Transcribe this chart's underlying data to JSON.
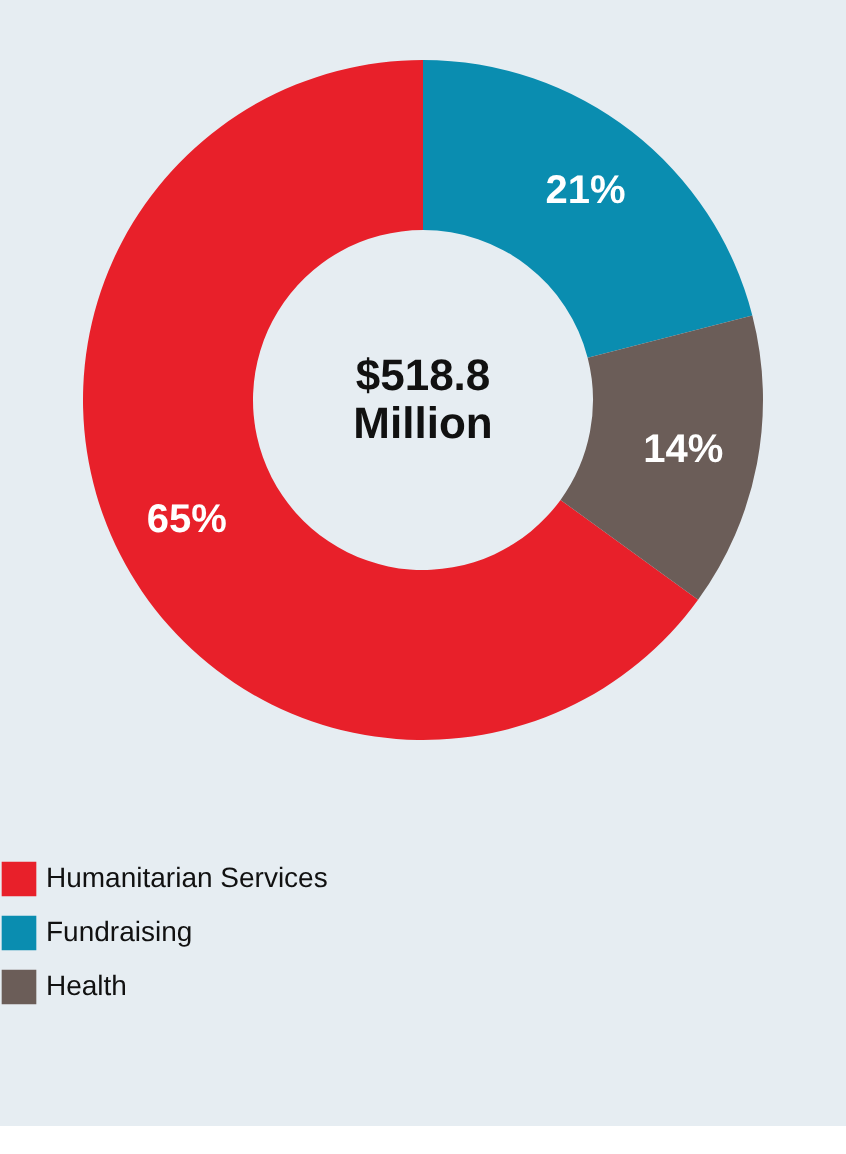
{
  "chart_data": {
    "type": "donut",
    "categories": [
      "Humanitarian Services",
      "Fundraising",
      "Health"
    ],
    "values": [
      65,
      21,
      14
    ],
    "colors": [
      "#e8202a",
      "#0a8db0",
      "#6b5d58"
    ],
    "value_labels": [
      "65%",
      "21%",
      "14%"
    ],
    "annotations": [
      "$518.8\nMillion"
    ],
    "legend": "bottom"
  }
}
